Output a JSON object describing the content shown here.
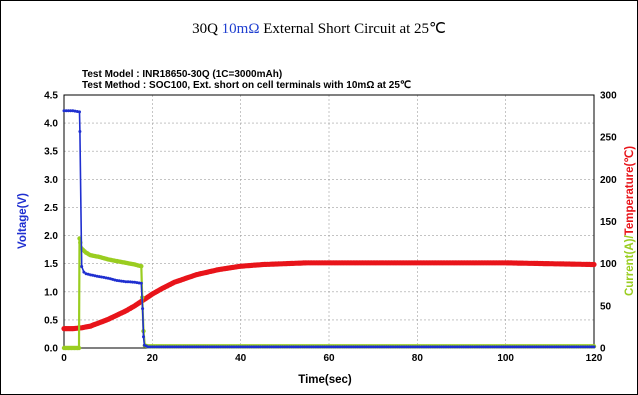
{
  "title": {
    "prefix": "30Q ",
    "highlight": "10mΩ",
    "suffix": " External Short Circuit at 25℃"
  },
  "info": {
    "model": "Test Model : INR18650-30Q (1C=3000mAh)",
    "method": "Test Method : SOC100, Ext. short on cell terminals with 10mΩ at 25℃"
  },
  "colors": {
    "voltage": "#1f2fd0",
    "current": "#9acd20",
    "temperature": "#e8141a",
    "grid": "#a0a0a0"
  },
  "chart_data": {
    "type": "line",
    "xlabel": "Time(sec)",
    "ylabel": "Voltage(V)",
    "y2label": {
      "current": "Current(A)",
      "slash": "/",
      "temperature": "Temperature(℃)"
    },
    "xlim": [
      0,
      120
    ],
    "ylim": [
      0,
      4.5
    ],
    "y2lim": [
      0,
      300
    ],
    "x_ticks": [
      "0",
      "20",
      "40",
      "60",
      "80",
      "100",
      "120"
    ],
    "y_ticks": [
      "0.0",
      "0.5",
      "1.0",
      "1.5",
      "2.0",
      "2.5",
      "3.0",
      "3.5",
      "4.0",
      "4.5"
    ],
    "y2_ticks": [
      "0",
      "50",
      "100",
      "150",
      "200",
      "250",
      "300"
    ],
    "grid": true,
    "series": [
      {
        "name": "Voltage(V)",
        "axis": "left",
        "x": [
          0,
          2,
          3.5,
          3.6,
          4,
          4.5,
          5,
          6,
          8,
          10,
          12,
          14,
          16,
          17.5,
          17.8,
          18,
          18.2,
          19,
          25,
          40,
          60,
          80,
          100,
          120
        ],
        "y": [
          4.22,
          4.22,
          4.2,
          3.85,
          1.45,
          1.35,
          1.32,
          1.3,
          1.27,
          1.24,
          1.2,
          1.18,
          1.17,
          1.15,
          0.7,
          0.2,
          0.05,
          0.02,
          0.02,
          0.02,
          0.02,
          0.02,
          0.02,
          0.02
        ]
      },
      {
        "name": "Current(A)",
        "axis": "right",
        "x": [
          0,
          3.4,
          3.5,
          3.7,
          4,
          5,
          6,
          8,
          10,
          12,
          14,
          16,
          17.5,
          17.7,
          18,
          18.3,
          19,
          30,
          60,
          90,
          120
        ],
        "y": [
          0,
          0,
          130,
          125,
          118,
          113,
          110,
          108,
          105,
          103,
          101,
          99,
          97,
          60,
          20,
          3,
          2,
          2,
          2,
          2,
          2
        ]
      },
      {
        "name": "Temperature(℃)",
        "axis": "right",
        "x": [
          0,
          2,
          4,
          6,
          8,
          10,
          12,
          14,
          16,
          18,
          20,
          22,
          25,
          30,
          35,
          40,
          45,
          50,
          55,
          60,
          70,
          80,
          90,
          100,
          110,
          120
        ],
        "y": [
          23,
          23,
          24,
          26,
          30,
          34,
          39,
          44,
          50,
          57,
          64,
          70,
          78,
          87,
          93,
          97,
          99,
          100,
          101,
          101,
          101,
          101,
          101,
          101,
          100,
          99
        ]
      }
    ]
  }
}
